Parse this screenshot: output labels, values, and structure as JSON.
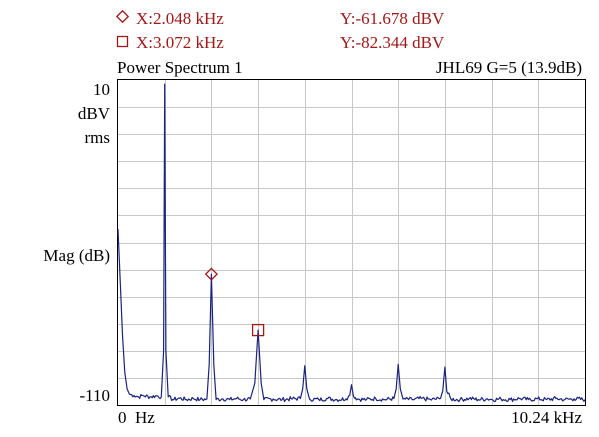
{
  "cursor_readout": {
    "cursor1": {
      "symbol": "diamond",
      "x_label": "X:2.048 kHz",
      "y_label": "Y:-61.678 dBV"
    },
    "cursor2": {
      "symbol": "square",
      "x_label": "X:3.072 kHz",
      "y_label": "Y:-82.344 dBV"
    }
  },
  "colors": {
    "cursor_text": "#a01818",
    "trace": "#1a237e",
    "grid": "#c8c8c8",
    "frame": "#000000",
    "label_text": "#000000"
  },
  "chart_data": {
    "type": "line",
    "title": "Power Spectrum 1",
    "subtitle": "JHL69 G=5 (13.9dB)",
    "ylabel": "Mag (dB)",
    "y_unit_lines": [
      "10",
      "dBV",
      "rms"
    ],
    "y_min_label": "-110",
    "x_start_label": "0  Hz",
    "x_end_label": "10.24 kHz",
    "xlim": [
      0,
      10.24
    ],
    "ylim": [
      -110,
      10
    ],
    "grid": true,
    "grid_divisions": {
      "x": 10,
      "y": 12
    },
    "series": [
      {
        "x_unit": "kHz",
        "y_unit": "dBV",
        "points": [
          [
            0.0,
            -45
          ],
          [
            0.05,
            -65
          ],
          [
            0.1,
            -85
          ],
          [
            0.15,
            -98
          ],
          [
            0.2,
            -104
          ],
          [
            0.25,
            -106
          ],
          [
            0.35,
            -106.5
          ],
          [
            0.45,
            -107
          ],
          [
            0.55,
            -106.5
          ],
          [
            0.7,
            -107
          ],
          [
            0.85,
            -106.6
          ],
          [
            0.95,
            -107
          ],
          [
            1.0,
            -90
          ],
          [
            1.024,
            8.5
          ],
          [
            1.05,
            -90
          ],
          [
            1.1,
            -107
          ],
          [
            1.2,
            -108
          ],
          [
            1.35,
            -107.5
          ],
          [
            1.5,
            -108
          ],
          [
            1.65,
            -107.6
          ],
          [
            1.8,
            -108
          ],
          [
            1.95,
            -107.8
          ],
          [
            2.0,
            -95
          ],
          [
            2.048,
            -61.678
          ],
          [
            2.1,
            -95
          ],
          [
            2.15,
            -108
          ],
          [
            2.3,
            -107.7
          ],
          [
            2.45,
            -108
          ],
          [
            2.6,
            -107.6
          ],
          [
            2.75,
            -108
          ],
          [
            2.9,
            -107.8
          ],
          [
            3.0,
            -102
          ],
          [
            3.072,
            -82.344
          ],
          [
            3.14,
            -102
          ],
          [
            3.2,
            -108
          ],
          [
            3.4,
            -107.8
          ],
          [
            3.6,
            -108
          ],
          [
            3.8,
            -107.7
          ],
          [
            4.0,
            -107.6
          ],
          [
            4.05,
            -104
          ],
          [
            4.096,
            -95.5
          ],
          [
            4.14,
            -104
          ],
          [
            4.2,
            -107.8
          ],
          [
            4.4,
            -108
          ],
          [
            4.6,
            -107.6
          ],
          [
            4.8,
            -108
          ],
          [
            5.0,
            -107.7
          ],
          [
            5.08,
            -106.5
          ],
          [
            5.12,
            -102.5
          ],
          [
            5.16,
            -106.5
          ],
          [
            5.25,
            -107.8
          ],
          [
            5.45,
            -108
          ],
          [
            5.65,
            -107.6
          ],
          [
            5.85,
            -108
          ],
          [
            6.05,
            -107.6
          ],
          [
            6.1,
            -104
          ],
          [
            6.144,
            -95
          ],
          [
            6.19,
            -104
          ],
          [
            6.25,
            -107.8
          ],
          [
            6.45,
            -108
          ],
          [
            6.65,
            -107.6
          ],
          [
            6.85,
            -108
          ],
          [
            7.05,
            -107.7
          ],
          [
            7.12,
            -105
          ],
          [
            7.168,
            -96
          ],
          [
            7.21,
            -105
          ],
          [
            7.3,
            -107.8
          ],
          [
            7.5,
            -108
          ],
          [
            7.7,
            -107.6
          ],
          [
            7.9,
            -108
          ],
          [
            8.1,
            -107.7
          ],
          [
            8.2,
            -108
          ],
          [
            8.4,
            -107.8
          ],
          [
            8.6,
            -108
          ],
          [
            8.8,
            -107.6
          ],
          [
            9.0,
            -108
          ],
          [
            9.2,
            -107.7
          ],
          [
            9.4,
            -108
          ],
          [
            9.6,
            -107.6
          ],
          [
            9.8,
            -108
          ],
          [
            10.0,
            -107.7
          ],
          [
            10.24,
            -108
          ]
        ]
      }
    ],
    "markers": [
      {
        "shape": "diamond",
        "x": 2.048,
        "y": -61.678
      },
      {
        "shape": "square",
        "x": 3.072,
        "y": -82.344
      }
    ]
  }
}
